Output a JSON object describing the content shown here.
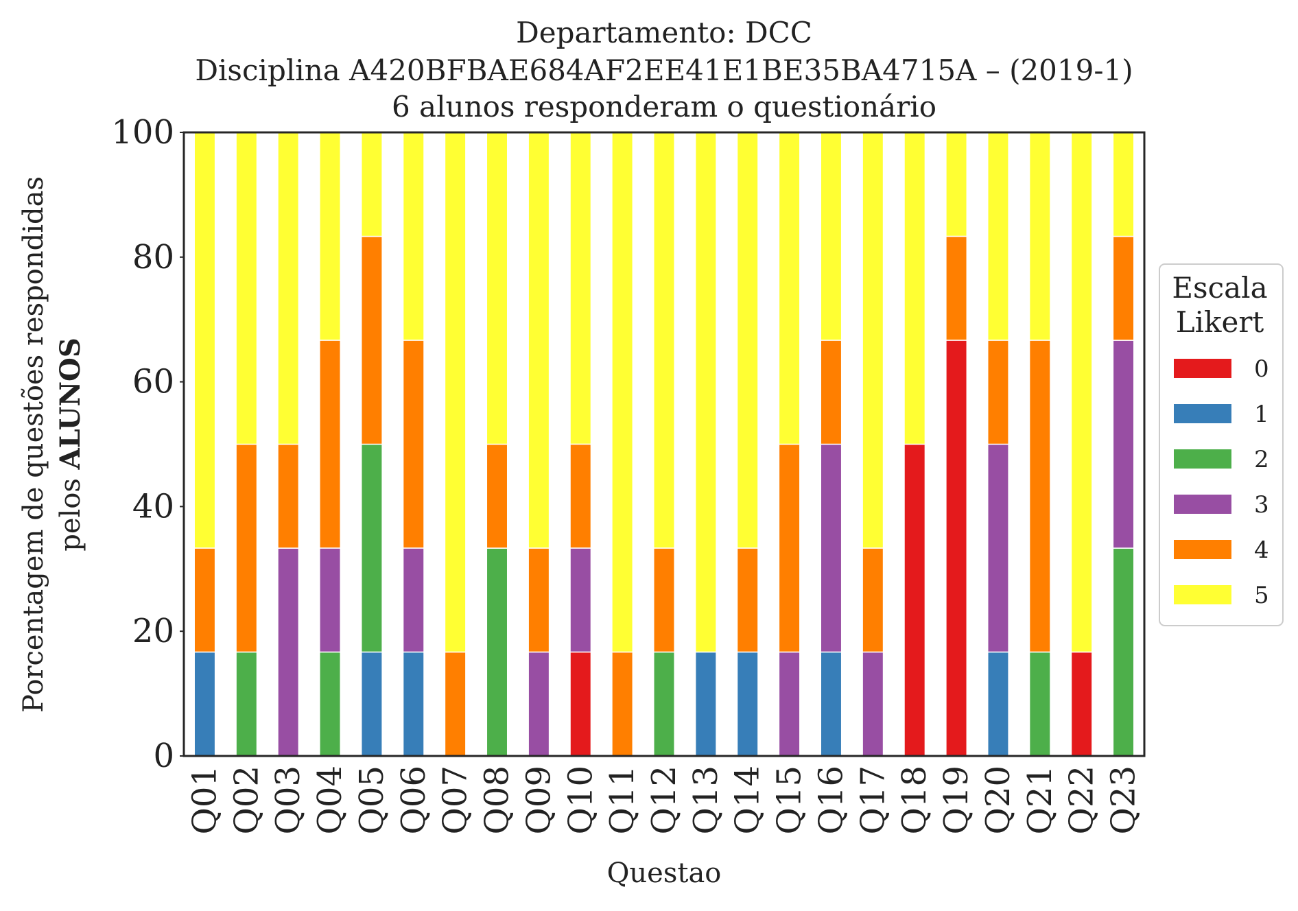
{
  "chart_data": {
    "type": "bar",
    "stacked": true,
    "title_lines": [
      "Departamento: DCC",
      "Disciplina A420BFBAE684AF2EE41E1BE35BA4715A – (2019-1)",
      "6 alunos responderam o questionário"
    ],
    "xlabel": "Questao",
    "ylabel_line1": "Porcentagem de questões respondidas",
    "ylabel_line2_prefix": "pelos ",
    "ylabel_line2_bold": "ALUNOS",
    "ylim": [
      0,
      100
    ],
    "yticks": [
      0,
      20,
      40,
      60,
      80,
      100
    ],
    "grid": false,
    "legend": {
      "title_lines": [
        "Escala",
        "Likert"
      ],
      "placement": "center-right, outside"
    },
    "categories": [
      "Q01",
      "Q02",
      "Q03",
      "Q04",
      "Q05",
      "Q06",
      "Q07",
      "Q08",
      "Q09",
      "Q10",
      "Q11",
      "Q12",
      "Q13",
      "Q14",
      "Q15",
      "Q16",
      "Q17",
      "Q18",
      "Q19",
      "Q20",
      "Q21",
      "Q22",
      "Q23"
    ],
    "series": [
      {
        "name": "0",
        "color": "#e41a1c",
        "values": [
          0,
          0,
          0,
          0,
          0,
          0,
          0,
          0,
          0,
          16.67,
          0,
          0,
          0,
          0,
          0,
          0,
          0,
          50,
          66.67,
          0,
          0,
          16.67,
          0
        ]
      },
      {
        "name": "1",
        "color": "#377eb8",
        "values": [
          16.67,
          0,
          0,
          0,
          16.67,
          16.67,
          0,
          0,
          0,
          0,
          0,
          0,
          16.67,
          16.67,
          0,
          16.67,
          0,
          0,
          0,
          16.67,
          0,
          0,
          0
        ]
      },
      {
        "name": "2",
        "color": "#4daf4a",
        "values": [
          0,
          16.67,
          0,
          16.67,
          33.33,
          0,
          0,
          33.33,
          0,
          0,
          0,
          16.67,
          0,
          0,
          0,
          0,
          0,
          0,
          0,
          0,
          16.67,
          0,
          33.33
        ]
      },
      {
        "name": "3",
        "color": "#984ea3",
        "values": [
          0,
          0,
          33.33,
          16.67,
          0,
          16.67,
          0,
          0,
          16.67,
          16.67,
          0,
          0,
          0,
          0,
          16.67,
          33.33,
          16.67,
          0,
          0,
          33.33,
          0,
          0,
          33.33
        ]
      },
      {
        "name": "4",
        "color": "#ff7f00",
        "values": [
          16.67,
          33.33,
          16.67,
          33.33,
          33.33,
          33.33,
          16.67,
          16.67,
          16.67,
          16.67,
          16.67,
          16.67,
          0,
          16.67,
          33.33,
          16.67,
          16.67,
          0,
          16.67,
          16.67,
          50,
          0,
          16.67
        ]
      },
      {
        "name": "5",
        "color": "#ffff33",
        "values": [
          66.67,
          50,
          50,
          33.33,
          16.67,
          33.33,
          83.33,
          50,
          66.67,
          50,
          83.33,
          66.67,
          83.33,
          66.67,
          50,
          33.33,
          66.67,
          50,
          16.67,
          33.33,
          33.33,
          83.33,
          16.67
        ]
      }
    ]
  }
}
